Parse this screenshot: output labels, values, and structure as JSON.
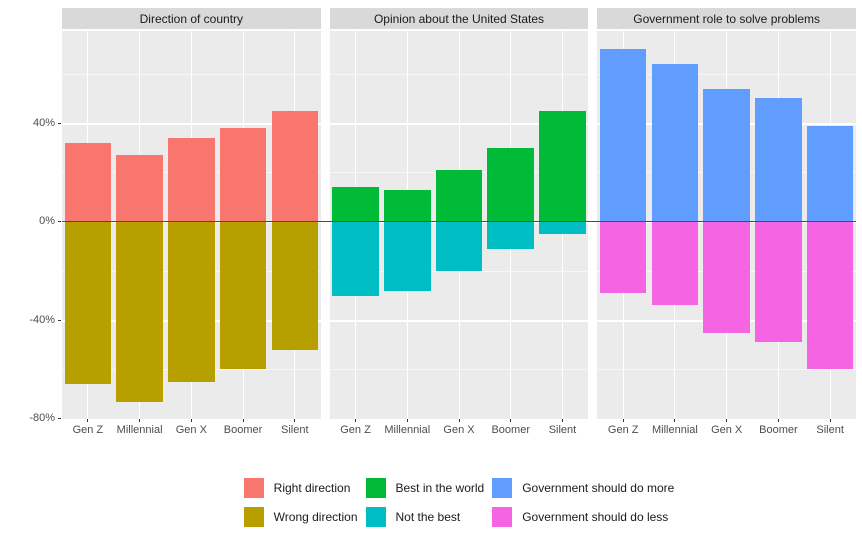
{
  "chart_data": {
    "type": "bar",
    "layout": "faceted-diverging-bars",
    "categories": [
      "Gen Z",
      "Millennial",
      "Gen X",
      "Boomer",
      "Silent"
    ],
    "yaxis": {
      "tick_labels": [
        "40%",
        "0%",
        "-40%",
        "-80%"
      ],
      "tick_values": [
        40,
        0,
        -40,
        -80
      ],
      "major_gridlines": [
        40,
        0,
        -40,
        -80
      ],
      "minor_gridlines": [
        60,
        20,
        -20,
        -60
      ],
      "range": [
        -80.1,
        77.4
      ],
      "grid": "on"
    },
    "zero_line": {
      "value": 0,
      "color": "#FF0000"
    },
    "panel_bg_color": "#EBEBEB",
    "strip_bg_color": "#D9D9D9",
    "panels": [
      {
        "title": "Direction of country",
        "positive": {
          "name": "Right direction",
          "color": "#F8766D",
          "values": [
            32,
            27,
            34,
            38,
            45
          ]
        },
        "negative": {
          "name": "Wrong direction",
          "color": "#B79F00",
          "values": [
            -66,
            -73,
            -65,
            -60,
            -52
          ]
        }
      },
      {
        "title": "Opinion about the United States",
        "positive": {
          "name": "Best in the world",
          "color": "#00BA38",
          "values": [
            14,
            13,
            21,
            30,
            45
          ]
        },
        "negative": {
          "name": "Not the best",
          "color": "#00BFC4",
          "values": [
            -30,
            -28,
            -20,
            -11,
            -5
          ]
        }
      },
      {
        "title": "Government role to solve problems",
        "positive": {
          "name": "Government should do more",
          "color": "#619CFF",
          "values": [
            70,
            64,
            54,
            50,
            39
          ]
        },
        "negative": {
          "name": "Government should do less",
          "color": "#F564E3",
          "values": [
            -29,
            -34,
            -45,
            -49,
            -60
          ]
        }
      }
    ],
    "legend": {
      "position": "bottom",
      "rows": [
        [
          "Right direction",
          "Best in the world",
          "Government should do more"
        ],
        [
          "Wrong direction",
          "Not the best",
          "Government should do less"
        ]
      ]
    }
  }
}
